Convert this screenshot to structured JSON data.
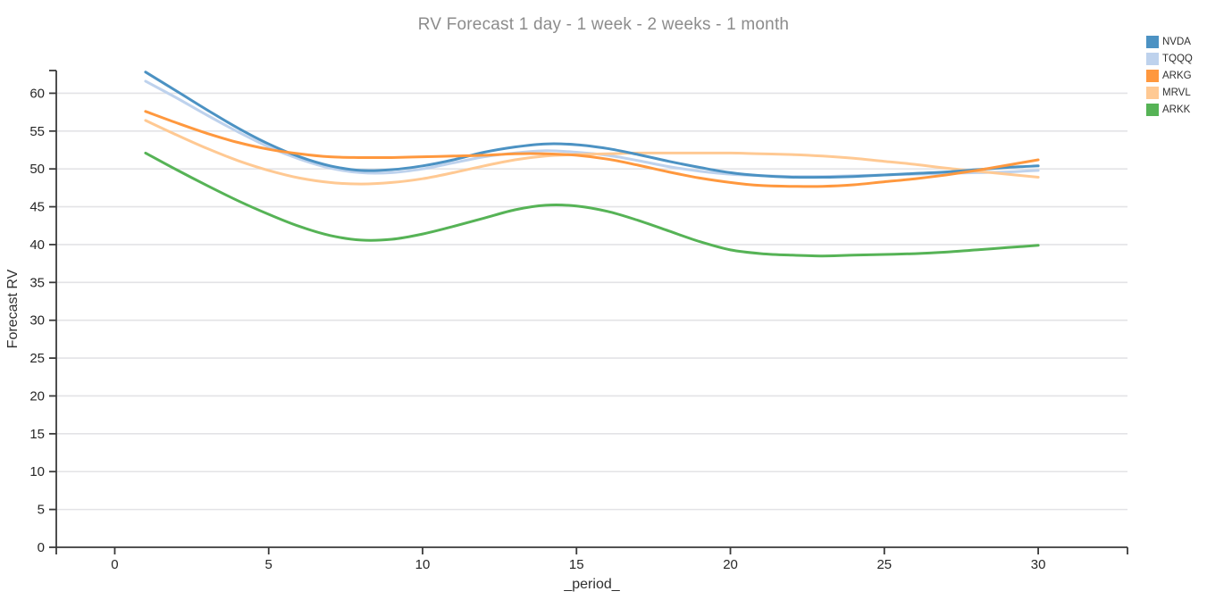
{
  "chart_data": {
    "type": "line",
    "title": "RV Forecast 1 day - 1 week - 2 weeks - 1 month",
    "xlabel": "_period_",
    "ylabel": "Forecast RV",
    "x": [
      1,
      2,
      3,
      4,
      5,
      6,
      7,
      8,
      9,
      10,
      11,
      12,
      13,
      14,
      15,
      16,
      17,
      18,
      19,
      20,
      21,
      22,
      23,
      24,
      25,
      26,
      27,
      28,
      29,
      30
    ],
    "series": [
      {
        "name": "NVDA",
        "color": "#4c92c3",
        "values": [
          62.8,
          60.3,
          57.8,
          55.4,
          53.3,
          51.6,
          50.4,
          49.8,
          49.9,
          50.4,
          51.2,
          52.2,
          52.9,
          53.3,
          53.2,
          52.7,
          51.9,
          51.0,
          50.2,
          49.5,
          49.1,
          48.9,
          48.9,
          49.0,
          49.2,
          49.4,
          49.6,
          49.9,
          50.2,
          50.4
        ]
      },
      {
        "name": "TQQQ",
        "color": "#bed2ed",
        "values": [
          61.6,
          59.4,
          57.1,
          54.9,
          52.9,
          51.3,
          50.1,
          49.5,
          49.5,
          50.0,
          50.8,
          51.6,
          52.1,
          52.4,
          52.2,
          51.8,
          51.1,
          50.3,
          49.7,
          49.3,
          49.1,
          49.0,
          49.0,
          49.1,
          49.2,
          49.3,
          49.4,
          49.5,
          49.6,
          49.8
        ]
      },
      {
        "name": "ARKG",
        "color": "#ff983e",
        "values": [
          57.6,
          56.1,
          54.7,
          53.5,
          52.6,
          52.0,
          51.6,
          51.5,
          51.5,
          51.6,
          51.7,
          51.8,
          52.0,
          52.0,
          51.8,
          51.3,
          50.5,
          49.6,
          48.8,
          48.2,
          47.8,
          47.7,
          47.7,
          47.9,
          48.3,
          48.7,
          49.2,
          49.8,
          50.5,
          51.2
        ]
      },
      {
        "name": "MRVL",
        "color": "#ffc993",
        "values": [
          56.4,
          54.5,
          52.7,
          51.1,
          49.8,
          48.8,
          48.2,
          48.0,
          48.2,
          48.7,
          49.5,
          50.4,
          51.2,
          51.7,
          51.9,
          52.0,
          52.1,
          52.1,
          52.1,
          52.1,
          52.0,
          51.9,
          51.7,
          51.4,
          51.0,
          50.6,
          50.1,
          49.7,
          49.3,
          48.9
        ]
      },
      {
        "name": "ARKK",
        "color": "#56b356",
        "values": [
          52.1,
          49.9,
          47.8,
          45.8,
          44.0,
          42.4,
          41.2,
          40.6,
          40.7,
          41.4,
          42.4,
          43.5,
          44.6,
          45.2,
          45.1,
          44.4,
          43.2,
          41.8,
          40.4,
          39.3,
          38.8,
          38.6,
          38.5,
          38.6,
          38.7,
          38.8,
          39.0,
          39.3,
          39.6,
          39.9
        ]
      }
    ],
    "xticks": [
      0,
      5,
      10,
      15,
      20,
      25,
      30
    ],
    "yticks": [
      0,
      5,
      10,
      15,
      20,
      25,
      30,
      35,
      40,
      45,
      50,
      55,
      60
    ],
    "xlim": [
      -1.9,
      32.9
    ],
    "ylim": [
      0,
      63
    ],
    "grid": "horizontal",
    "legend_position": "top-right",
    "z_order": [
      "TQQQ",
      "MRVL",
      "NVDA",
      "ARKG",
      "ARKK"
    ],
    "line_width": 3
  },
  "styles": {
    "title_color": "#8c8c8c",
    "axis_color": "#3a3a3a",
    "grid_color": "#e3e3e6",
    "tick_label_color": "#262626",
    "background": "#ffffff"
  }
}
